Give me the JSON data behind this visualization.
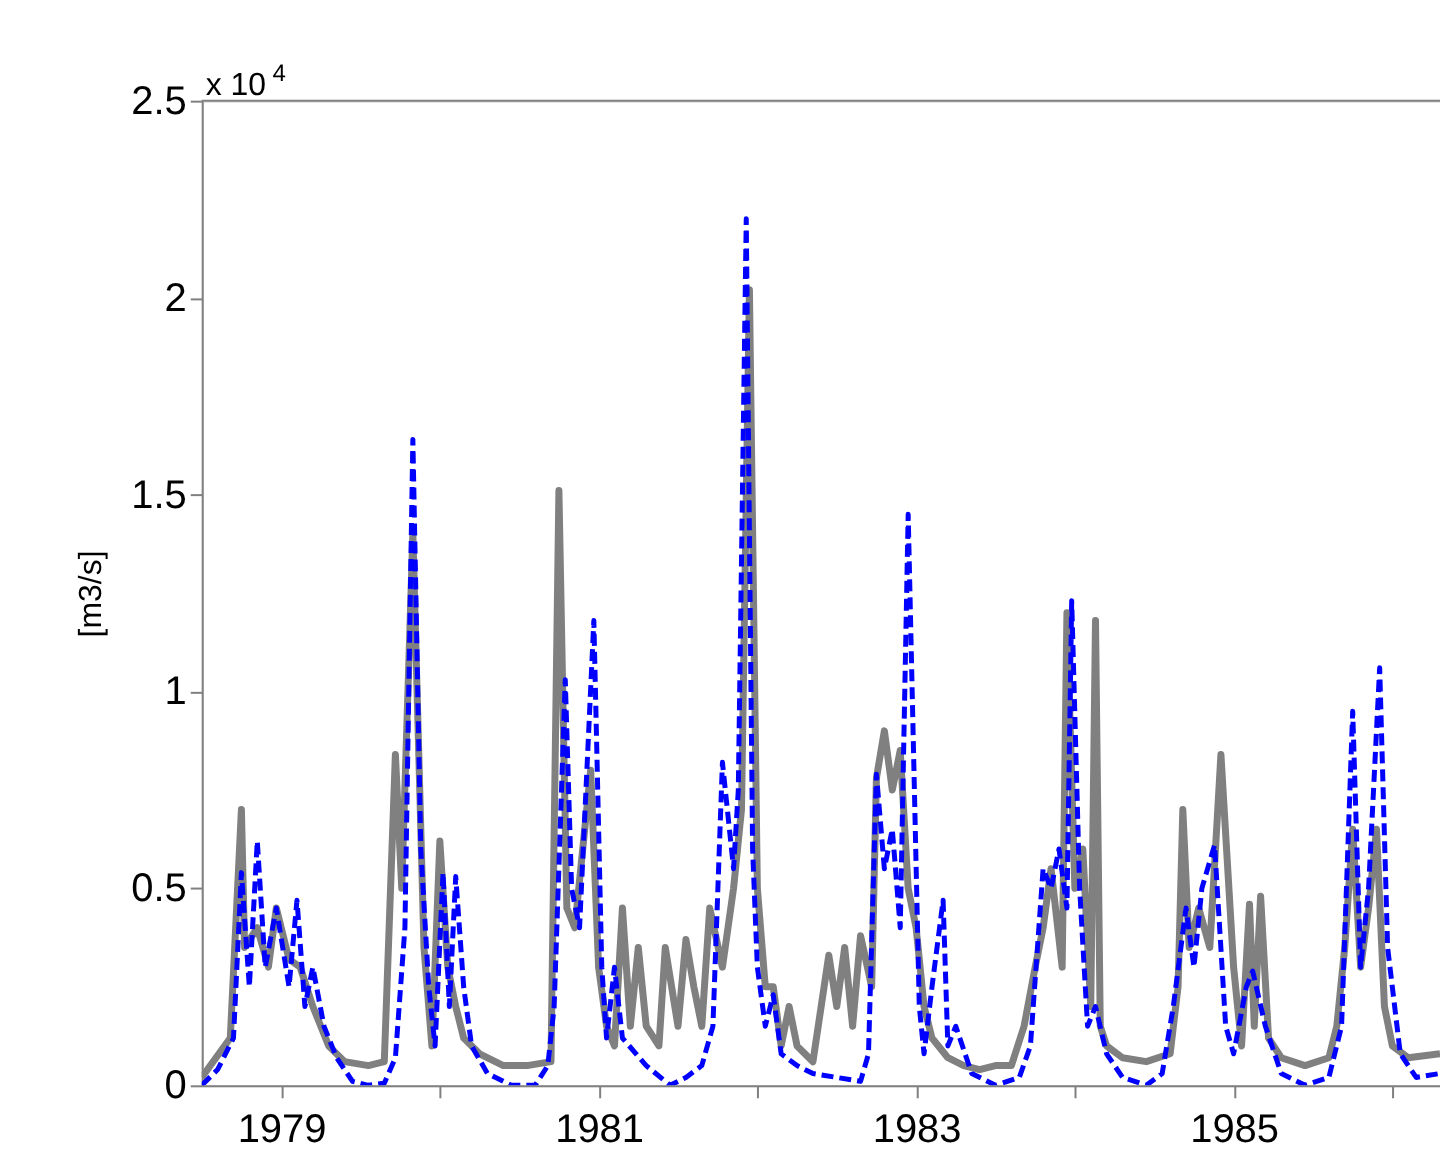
{
  "chart_data": {
    "type": "line",
    "ylabel": "[m3/s]",
    "annotations": [
      "x 10$^{4}$"
    ],
    "xlim": [
      1978.5,
      1986.3
    ],
    "xticks": [
      1979,
      {
        "value": 1980,
        "label": null
      },
      1981,
      {
        "value": 1982,
        "label": null
      },
      1983,
      {
        "value": 1984,
        "label": null
      },
      1985,
      {
        "value": 1986,
        "label": null
      }
    ],
    "ylim": [
      0,
      2.5
    ],
    "yticks": [
      0,
      0.5,
      1,
      1.5,
      2,
      2.5
    ],
    "grid": false,
    "series": [
      {
        "color": "#808080",
        "line_style": "solid",
        "x": [
          1978.5,
          1978.68,
          1978.75,
          1978.77,
          1978.85,
          1978.92,
          1978.97,
          1979.05,
          1979.12,
          1979.2,
          1979.3,
          1979.4,
          1979.55,
          1979.65,
          1979.72,
          1979.76,
          1979.83,
          1979.9,
          1979.95,
          1980.0,
          1980.05,
          1980.1,
          1980.15,
          1980.25,
          1980.4,
          1980.55,
          1980.7,
          1980.75,
          1980.8,
          1980.85,
          1980.95,
          1981.0,
          1981.05,
          1981.1,
          1981.15,
          1981.2,
          1981.25,
          1981.3,
          1981.38,
          1981.42,
          1981.5,
          1981.55,
          1981.6,
          1981.65,
          1981.7,
          1981.78,
          1981.85,
          1981.9,
          1981.95,
          1982.0,
          1982.05,
          1982.1,
          1982.15,
          1982.2,
          1982.25,
          1982.35,
          1982.45,
          1982.5,
          1982.55,
          1982.6,
          1982.65,
          1982.72,
          1982.75,
          1982.8,
          1982.85,
          1982.9,
          1982.95,
          1983.0,
          1983.05,
          1983.1,
          1983.2,
          1983.3,
          1983.4,
          1983.5,
          1983.6,
          1983.68,
          1983.75,
          1983.8,
          1983.85,
          1983.92,
          1983.95,
          1984.0,
          1984.05,
          1984.1,
          1984.13,
          1984.16,
          1984.2,
          1984.3,
          1984.45,
          1984.6,
          1984.65,
          1984.68,
          1984.72,
          1984.78,
          1984.85,
          1984.92,
          1985.0,
          1985.05,
          1985.1,
          1985.13,
          1985.17,
          1985.22,
          1985.3,
          1985.45,
          1985.6,
          1985.65,
          1985.7,
          1985.75,
          1985.8,
          1985.85,
          1985.9,
          1985.95,
          1986.0,
          1986.1,
          1986.3
        ],
        "values": [
          0.02,
          0.12,
          0.7,
          0.35,
          0.4,
          0.3,
          0.45,
          0.32,
          0.3,
          0.2,
          0.1,
          0.06,
          0.05,
          0.06,
          0.84,
          0.5,
          1.4,
          0.35,
          0.1,
          0.62,
          0.3,
          0.2,
          0.12,
          0.08,
          0.05,
          0.05,
          0.06,
          1.51,
          0.45,
          0.4,
          0.8,
          0.3,
          0.15,
          0.1,
          0.45,
          0.15,
          0.35,
          0.15,
          0.1,
          0.35,
          0.15,
          0.37,
          0.25,
          0.15,
          0.45,
          0.3,
          0.5,
          0.7,
          2.02,
          0.5,
          0.25,
          0.25,
          0.1,
          0.2,
          0.1,
          0.06,
          0.33,
          0.2,
          0.35,
          0.15,
          0.38,
          0.25,
          0.78,
          0.9,
          0.75,
          0.85,
          0.5,
          0.4,
          0.2,
          0.12,
          0.07,
          0.05,
          0.04,
          0.05,
          0.05,
          0.15,
          0.3,
          0.4,
          0.55,
          0.3,
          1.2,
          0.5,
          0.6,
          0.2,
          1.18,
          0.15,
          0.1,
          0.07,
          0.06,
          0.08,
          0.25,
          0.7,
          0.35,
          0.45,
          0.35,
          0.84,
          0.3,
          0.1,
          0.46,
          0.15,
          0.48,
          0.12,
          0.07,
          0.05,
          0.07,
          0.15,
          0.35,
          0.65,
          0.3,
          0.45,
          0.65,
          0.2,
          0.1,
          0.07,
          0.08
        ]
      },
      {
        "color": "#0000ff",
        "line_style": "dashed",
        "x": [
          1978.5,
          1978.6,
          1978.7,
          1978.75,
          1978.8,
          1978.85,
          1978.9,
          1978.97,
          1979.05,
          1979.1,
          1979.15,
          1979.2,
          1979.27,
          1979.35,
          1979.45,
          1979.55,
          1979.65,
          1979.72,
          1979.78,
          1979.83,
          1979.88,
          1979.93,
          1979.97,
          1980.02,
          1980.06,
          1980.1,
          1980.15,
          1980.2,
          1980.3,
          1980.45,
          1980.6,
          1980.68,
          1980.72,
          1980.79,
          1980.83,
          1980.88,
          1980.97,
          1981.02,
          1981.05,
          1981.1,
          1981.15,
          1981.3,
          1981.45,
          1981.55,
          1981.65,
          1981.72,
          1981.78,
          1981.85,
          1981.88,
          1981.93,
          1981.97,
          1982.0,
          1982.05,
          1982.1,
          1982.15,
          1982.25,
          1982.35,
          1982.5,
          1982.65,
          1982.7,
          1982.75,
          1982.8,
          1982.85,
          1982.9,
          1982.95,
          1983.02,
          1983.05,
          1983.1,
          1983.17,
          1983.2,
          1983.25,
          1983.35,
          1983.5,
          1983.65,
          1983.72,
          1983.8,
          1983.85,
          1983.9,
          1983.95,
          1983.98,
          1984.03,
          1984.08,
          1984.13,
          1984.2,
          1984.3,
          1984.45,
          1984.55,
          1984.62,
          1984.7,
          1984.75,
          1984.8,
          1984.88,
          1984.95,
          1985.0,
          1985.08,
          1985.12,
          1985.2,
          1985.3,
          1985.45,
          1985.6,
          1985.68,
          1985.75,
          1985.8,
          1985.85,
          1985.92,
          1985.97,
          1986.05,
          1986.15,
          1986.3
        ],
        "values": [
          0,
          0.04,
          0.12,
          0.54,
          0.25,
          0.62,
          0.3,
          0.45,
          0.25,
          0.47,
          0.2,
          0.3,
          0.15,
          0.07,
          0.01,
          0,
          0.005,
          0.07,
          0.4,
          1.64,
          0.6,
          0.25,
          0.1,
          0.54,
          0.2,
          0.53,
          0.25,
          0.1,
          0.03,
          0,
          0,
          0.05,
          0.2,
          1.03,
          0.5,
          0.4,
          1.18,
          0.3,
          0.12,
          0.3,
          0.12,
          0.05,
          0,
          0.02,
          0.05,
          0.15,
          0.82,
          0.55,
          0.75,
          2.2,
          0.6,
          0.3,
          0.15,
          0.23,
          0.08,
          0.05,
          0.03,
          0.02,
          0.01,
          0.08,
          0.79,
          0.55,
          0.65,
          0.4,
          1.45,
          0.2,
          0.08,
          0.25,
          0.47,
          0.1,
          0.15,
          0.03,
          0,
          0.02,
          0.1,
          0.55,
          0.5,
          0.6,
          0.45,
          1.23,
          0.5,
          0.15,
          0.2,
          0.08,
          0.02,
          0,
          0.03,
          0.2,
          0.45,
          0.3,
          0.5,
          0.61,
          0.15,
          0.08,
          0.25,
          0.29,
          0.15,
          0.03,
          0,
          0.02,
          0.15,
          0.95,
          0.3,
          0.5,
          1.06,
          0.35,
          0.08,
          0.02,
          0.03
        ]
      }
    ]
  }
}
